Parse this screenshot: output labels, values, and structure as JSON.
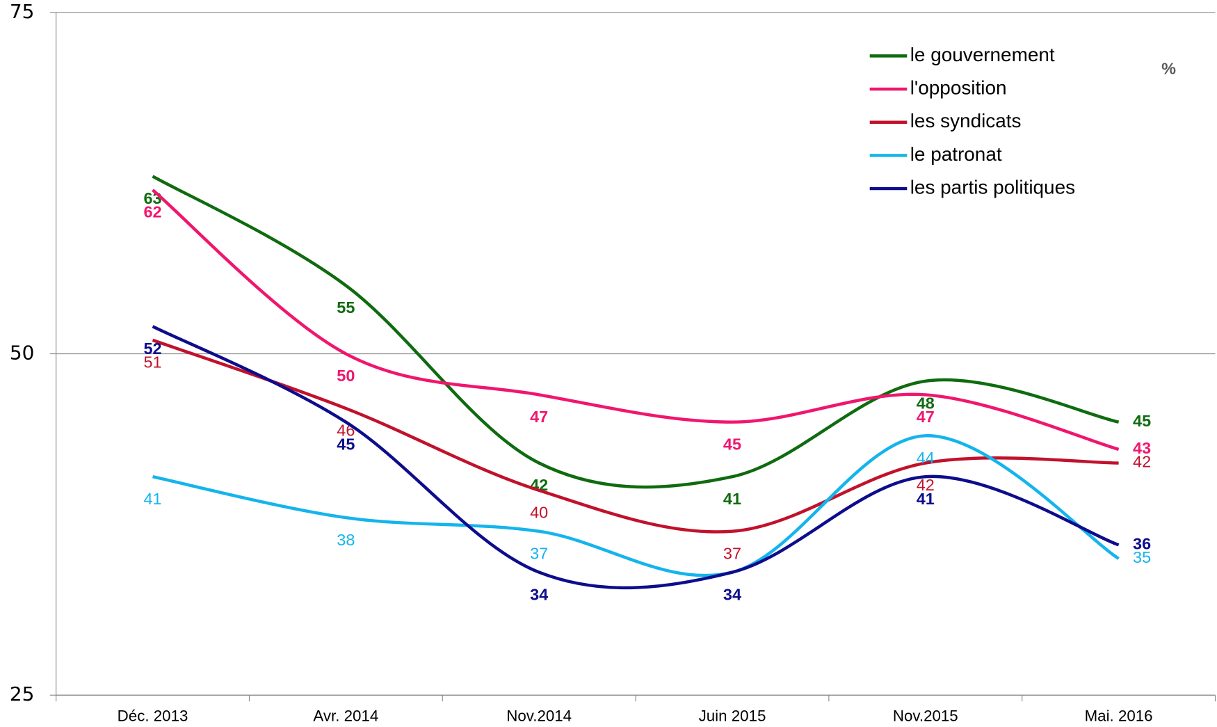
{
  "chart_data": {
    "type": "line",
    "categories": [
      "Déc. 2013",
      "Avr. 2014",
      "Nov.2014",
      "Juin 2015",
      "Nov.2015",
      "Mai. 2016"
    ],
    "series": [
      {
        "name": "le gouvernement",
        "color": "#0f6b0f",
        "values": [
          63,
          55,
          42,
          41,
          48,
          45
        ]
      },
      {
        "name": "l'opposition",
        "color": "#f0166e",
        "values": [
          62,
          50,
          47,
          45,
          47,
          43
        ]
      },
      {
        "name": "les syndicats",
        "color": "#c0122c",
        "values": [
          51,
          46,
          40,
          37,
          42,
          42
        ]
      },
      {
        "name": "le patronat",
        "color": "#14b4ec",
        "values": [
          41,
          38,
          37,
          34,
          44,
          35
        ],
        "value_labels": [
          "41",
          "38",
          "37",
          null,
          "44",
          "35"
        ]
      },
      {
        "name": "les partis politiques",
        "color": "#0d0d8c",
        "values": [
          52,
          45,
          34,
          34,
          41,
          36
        ]
      }
    ],
    "ylim": [
      25,
      75
    ],
    "yticks": [
      25,
      50,
      75
    ],
    "grid": true,
    "legend": "top-right",
    "unit_note": "%"
  }
}
